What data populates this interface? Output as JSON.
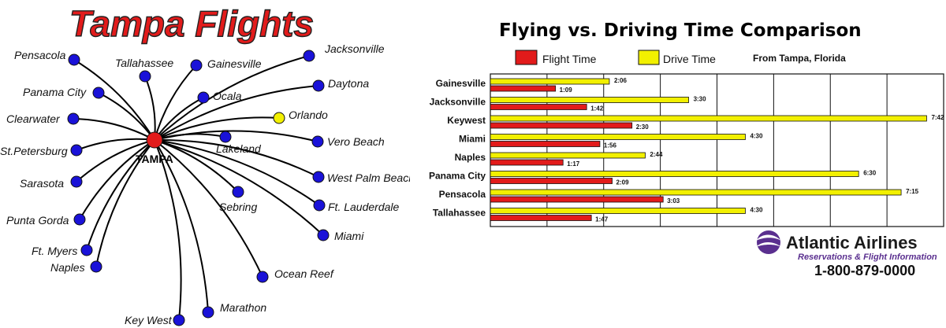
{
  "map": {
    "title": "Tampa Flights",
    "hub": {
      "name": "TAMPA",
      "color": "#e21b1b"
    },
    "node_color": "#1a12d8",
    "highlight_color": "#f2f000",
    "cities": [
      {
        "name": "Pensacola"
      },
      {
        "name": "Tallahassee"
      },
      {
        "name": "Gainesville"
      },
      {
        "name": "Jacksonville"
      },
      {
        "name": "Daytona"
      },
      {
        "name": "Orlando",
        "highlight": true
      },
      {
        "name": "Vero Beach"
      },
      {
        "name": "West Palm Beach"
      },
      {
        "name": "Ft. Lauderdale"
      },
      {
        "name": "Miami"
      },
      {
        "name": "Ocean Reef"
      },
      {
        "name": "Marathon"
      },
      {
        "name": "Key West"
      },
      {
        "name": "Naples"
      },
      {
        "name": "Ft. Myers"
      },
      {
        "name": "Punta Gorda"
      },
      {
        "name": "Sarasota"
      },
      {
        "name": "St.Petersburg"
      },
      {
        "name": "Clearwater"
      },
      {
        "name": "Panama City"
      },
      {
        "name": "Ocala"
      },
      {
        "name": "Lakeland"
      },
      {
        "name": "Sebring"
      }
    ]
  },
  "chart_data": {
    "type": "bar",
    "title": "Flying vs. Driving Time Comparison",
    "subtitle": "From Tampa, Florida",
    "xlim": [
      0,
      8
    ],
    "grid": true,
    "categories": [
      "Gainesville",
      "Jacksonville",
      "Keywest",
      "Miami",
      "Naples",
      "Panama City",
      "Pensacola",
      "Tallahassee"
    ],
    "series": [
      {
        "name": "Drive Time",
        "color": "#f2f000",
        "values": [
          2.1,
          3.5,
          7.7,
          4.5,
          2.733,
          6.5,
          7.25,
          4.5
        ],
        "labels": [
          "2:06",
          "3:30",
          "7:42",
          "4:30",
          "2:44",
          "6:30",
          "7:15",
          "4:30"
        ]
      },
      {
        "name": "Flight Time",
        "color": "#e21b1b",
        "values": [
          1.15,
          1.7,
          2.5,
          1.933,
          1.283,
          2.15,
          3.05,
          1.783
        ],
        "labels": [
          "1:09",
          "1:42",
          "2:30",
          "1:56",
          "1:17",
          "2:09",
          "3:03",
          "1:47"
        ]
      }
    ]
  },
  "branding": {
    "name": "Atlantic Airlines",
    "tagline": "Reservations & Flight Information",
    "phone": "1-800-879-0000",
    "color": "#5a2f8f"
  }
}
